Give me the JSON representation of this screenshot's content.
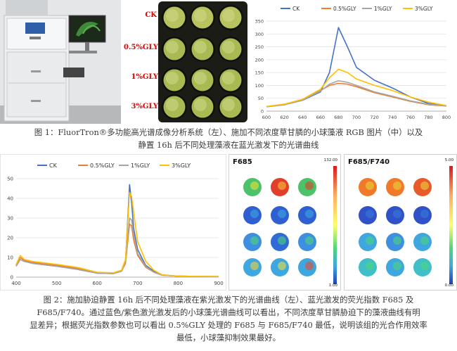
{
  "fig1": {
    "plate_labels": [
      "CK",
      "0.5%GLY",
      "1%GLY",
      "3%GLY"
    ],
    "caption_lines": [
      "图 1：FluorTron®多功能高光谱成像分析系统（左）、施加不同浓度草甘膦的小球藻液 RGB 图片（中）以及",
      "静置 16h 后不同处理藻液在蓝光激发下的光谱曲线"
    ]
  },
  "fig2": {
    "heatmap_left": {
      "title": "F685",
      "scale_max": "132.00",
      "scale_min": "1.00"
    },
    "heatmap_right": {
      "title": "F685/F740",
      "scale_max": "5.00",
      "scale_min": "0.00"
    },
    "caption_lines": [
      "图 2：施加胁迫静置 16h 后不同处理藻液在紫光激发下的光谱曲线（左）、蓝光激发的荧光指数 F685 及",
      "F685/F740。通过蓝色/紫色激光激发后的小球藻光谱曲线可以看出，不同浓度草甘膦胁迫下的藻液曲线有明",
      "显差异；根据荧光指数参数也可以看出 0.5%GLY 处理的 F685 与 F685/F740 最低，说明该组的光合作用效率",
      "最低，小球藻抑制效果最好。"
    ]
  },
  "colors": {
    "CK": "#4472c4",
    "GLY05": "#ed7d31",
    "GLY1": "#a5a5a5",
    "GLY3": "#ffc000"
  },
  "chart_data": [
    {
      "type": "line",
      "title": "",
      "xlabel": "",
      "ylabel": "",
      "x": [
        600,
        620,
        640,
        660,
        670,
        680,
        690,
        700,
        720,
        740,
        760,
        780,
        800
      ],
      "xlim": [
        600,
        800
      ],
      "ylim": [
        0,
        350
      ],
      "xticks": [
        600,
        620,
        640,
        660,
        680,
        700,
        720,
        740,
        760,
        780,
        800
      ],
      "yticks": [
        0,
        50,
        100,
        150,
        200,
        250,
        300,
        350
      ],
      "grid": true,
      "legend": "top",
      "series": [
        {
          "name": "CK",
          "values": [
            17,
            25,
            42,
            75,
            150,
            325,
            250,
            170,
            120,
            90,
            55,
            30,
            20
          ]
        },
        {
          "name": "0.5%GLY",
          "values": [
            18,
            27,
            45,
            80,
            100,
            108,
            105,
            95,
            72,
            55,
            38,
            25,
            20
          ]
        },
        {
          "name": "1%GLY",
          "values": [
            17,
            25,
            43,
            78,
            105,
            118,
            112,
            100,
            75,
            58,
            40,
            27,
            20
          ]
        },
        {
          "name": "3%GLY",
          "values": [
            18,
            27,
            46,
            85,
            130,
            163,
            150,
            125,
            100,
            80,
            55,
            35,
            22
          ]
        }
      ]
    },
    {
      "type": "line",
      "title": "",
      "xlabel": "",
      "ylabel": "",
      "x": [
        400,
        410,
        420,
        440,
        460,
        500,
        550,
        600,
        640,
        660,
        670,
        680,
        685,
        690,
        700,
        720,
        740,
        760,
        800,
        840,
        900
      ],
      "xlim": [
        400,
        900
      ],
      "ylim": [
        0,
        50
      ],
      "xticks": [
        400,
        500,
        600,
        700,
        800,
        900
      ],
      "yticks": [
        0,
        10,
        20,
        30,
        40,
        50
      ],
      "grid": true,
      "legend": "top",
      "series": [
        {
          "name": "CK",
          "values": [
            6,
            9,
            8,
            7,
            6.5,
            5.5,
            4,
            2,
            1.8,
            3,
            8,
            47,
            38,
            25,
            14,
            6,
            3,
            1,
            0.5,
            0.4,
            0.3
          ]
        },
        {
          "name": "0.5%GLY",
          "values": [
            6,
            10,
            8.5,
            7.5,
            7,
            6,
            4.5,
            2.2,
            2,
            3,
            7,
            27,
            26,
            19,
            11,
            5,
            2.5,
            1,
            0.5,
            0.4,
            0.3
          ]
        },
        {
          "name": "1%GLY",
          "values": [
            5.5,
            9,
            8,
            7,
            6.5,
            5.5,
            4,
            2,
            1.8,
            3,
            8,
            30,
            29,
            22,
            12,
            5.5,
            2.5,
            1,
            0.5,
            0.4,
            0.3
          ]
        },
        {
          "name": "3%GLY",
          "values": [
            6.5,
            11,
            9,
            8,
            7.5,
            6.5,
            5,
            2.5,
            2.2,
            3.5,
            9,
            43,
            41,
            33,
            18,
            8,
            3.5,
            1.2,
            0.5,
            0.4,
            0.3
          ]
        }
      ]
    }
  ]
}
